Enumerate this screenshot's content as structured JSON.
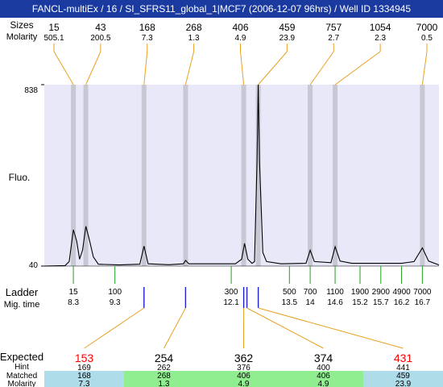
{
  "window_title": "FANCL-multiEx / 16 / SI_SFRS11_global_1|MCF7 (2006-12-07 96hrs) / Well ID 1334945",
  "labels": {
    "sizes_header": "Sizes",
    "molarity_header": "Molarity",
    "y_axis": "Fluo.",
    "ladder": "Ladder",
    "mig_time": "Mig. time",
    "expected": "Expected",
    "hint": "Hint",
    "matched": "Matched",
    "molarity_bottom": "Molarity"
  },
  "colors": {
    "plot_background": "#e8e8f8",
    "peak_band": "#c8c8d4",
    "trace": "#000000",
    "connector_orange": "#e8a020",
    "ladder_tick_green": "#20a020",
    "sample_tick_blue": "#2020d0",
    "expected_red": "#ff0000",
    "cell_blue": "#aedce8",
    "cell_green": "#90ee90"
  },
  "chart_data": {
    "type": "line",
    "title": "",
    "xlabel": "Mig. time",
    "ylabel": "Fluo.",
    "ylim": [
      40,
      838
    ],
    "y_ticks": [
      "838",
      "40"
    ],
    "peaks": [
      {
        "size": "15",
        "molarity": "505.1",
        "time": 8.3
      },
      {
        "size": "43",
        "molarity": "200.5",
        "time": 8.6
      },
      {
        "size": "168",
        "molarity": "7.3",
        "time": 10.0
      },
      {
        "size": "268",
        "molarity": "1.3",
        "time": 11.0
      },
      {
        "size": "406",
        "molarity": "4.9",
        "time": 12.4
      },
      {
        "size": "459",
        "molarity": "23.9",
        "time": 12.75
      },
      {
        "size": "757",
        "molarity": "2.7",
        "time": 14.0
      },
      {
        "size": "1054",
        "molarity": "2.3",
        "time": 14.6
      },
      {
        "size": "7000",
        "molarity": "0.5",
        "time": 16.7
      }
    ],
    "ladder": [
      {
        "size": "15",
        "time": "8.3"
      },
      {
        "size": "100",
        "time": "9.3"
      },
      {
        "size": "300",
        "time": "12.1"
      },
      {
        "size": "500",
        "time": "13.5"
      },
      {
        "size": "700",
        "time": "14"
      },
      {
        "size": "1100",
        "time": "14.6"
      },
      {
        "size": "1900",
        "time": "15.2"
      },
      {
        "size": "2900",
        "time": "15.7"
      },
      {
        "size": "4900",
        "time": "16.2"
      },
      {
        "size": "7000",
        "time": "16.7"
      }
    ],
    "trace": [
      [
        7.6,
        40
      ],
      [
        8.1,
        42
      ],
      [
        8.2,
        60
      ],
      [
        8.3,
        200
      ],
      [
        8.38,
        150
      ],
      [
        8.45,
        70
      ],
      [
        8.52,
        110
      ],
      [
        8.6,
        215
      ],
      [
        8.68,
        160
      ],
      [
        8.78,
        80
      ],
      [
        8.9,
        48
      ],
      [
        9.4,
        45
      ],
      [
        9.9,
        48
      ],
      [
        10.0,
        128
      ],
      [
        10.1,
        50
      ],
      [
        10.6,
        46
      ],
      [
        10.95,
        50
      ],
      [
        11.0,
        65
      ],
      [
        11.08,
        50
      ],
      [
        12.2,
        50
      ],
      [
        12.35,
        70
      ],
      [
        12.42,
        140
      ],
      [
        12.5,
        70
      ],
      [
        12.6,
        52
      ],
      [
        12.66,
        60
      ],
      [
        12.72,
        500
      ],
      [
        12.75,
        838
      ],
      [
        12.78,
        500
      ],
      [
        12.86,
        100
      ],
      [
        12.95,
        60
      ],
      [
        13.3,
        50
      ],
      [
        13.9,
        52
      ],
      [
        14.0,
        110
      ],
      [
        14.1,
        60
      ],
      [
        14.5,
        55
      ],
      [
        14.6,
        125
      ],
      [
        14.72,
        62
      ],
      [
        15.0,
        52
      ],
      [
        16.2,
        52
      ],
      [
        16.5,
        60
      ],
      [
        16.7,
        120
      ],
      [
        16.85,
        62
      ],
      [
        17.1,
        45
      ]
    ]
  },
  "expected": [
    {
      "expected": "153",
      "hint": "169",
      "matched": "168",
      "molarity": "7.3",
      "highlight": "red",
      "cell": "blue"
    },
    {
      "expected": "254",
      "hint": "262",
      "matched": "268",
      "molarity": "1.3",
      "highlight": "black",
      "cell": "green"
    },
    {
      "expected": "362",
      "hint": "376",
      "matched": "406",
      "molarity": "4.9",
      "highlight": "black",
      "cell": "green"
    },
    {
      "expected": "374",
      "hint": "400",
      "matched": "406",
      "molarity": "4.9",
      "highlight": "black",
      "cell": "green"
    },
    {
      "expected": "431",
      "hint": "441",
      "matched": "459",
      "molarity": "23.9",
      "highlight": "red",
      "cell": "blue"
    }
  ]
}
